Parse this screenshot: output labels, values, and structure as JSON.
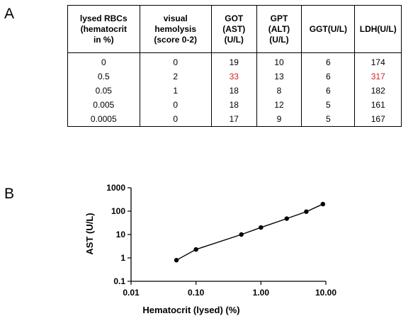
{
  "panel_a_label": "A",
  "panel_b_label": "B",
  "table": {
    "headers": [
      [
        "lysed RBCs",
        "(hematocrit",
        "in %)"
      ],
      [
        "visual",
        "hemolysis",
        "(score 0-2)"
      ],
      [
        "GOT",
        "(AST)",
        "(U/L)"
      ],
      [
        "GPT",
        "(ALT)",
        "(U/L)"
      ],
      [
        "GGT(U/L)"
      ],
      [
        "LDH(U/L)"
      ]
    ],
    "rows": [
      [
        "0",
        "0",
        "19",
        "10",
        "6",
        "174"
      ],
      [
        "0.5",
        "2",
        "33",
        "13",
        "6",
        "317"
      ],
      [
        "0.05",
        "1",
        "18",
        "8",
        "6",
        "182"
      ],
      [
        "0.005",
        "0",
        "18",
        "12",
        "5",
        "161"
      ],
      [
        "0.0005",
        "0",
        "17",
        "9",
        "5",
        "167"
      ]
    ],
    "highlight_color": "#d42020"
  },
  "chart_data": {
    "type": "line",
    "xlabel": "Hematocrit (lysed) (%)",
    "ylabel": "AST (U/L)",
    "x_scale": "log",
    "y_scale": "log",
    "xlim": [
      0.01,
      10
    ],
    "ylim": [
      0.1,
      1000
    ],
    "x_ticks": [
      "0.01",
      "0.10",
      "1.00",
      "10.00"
    ],
    "y_ticks": [
      "0.1",
      "1",
      "10",
      "100",
      "1000"
    ],
    "grid": false,
    "x": [
      0.05,
      0.1,
      0.5,
      1.0,
      2.5,
      5.0,
      9.0
    ],
    "y": [
      0.8,
      2.3,
      10,
      20,
      48,
      95,
      200
    ],
    "marker": "circle",
    "line_color": "#000000"
  }
}
